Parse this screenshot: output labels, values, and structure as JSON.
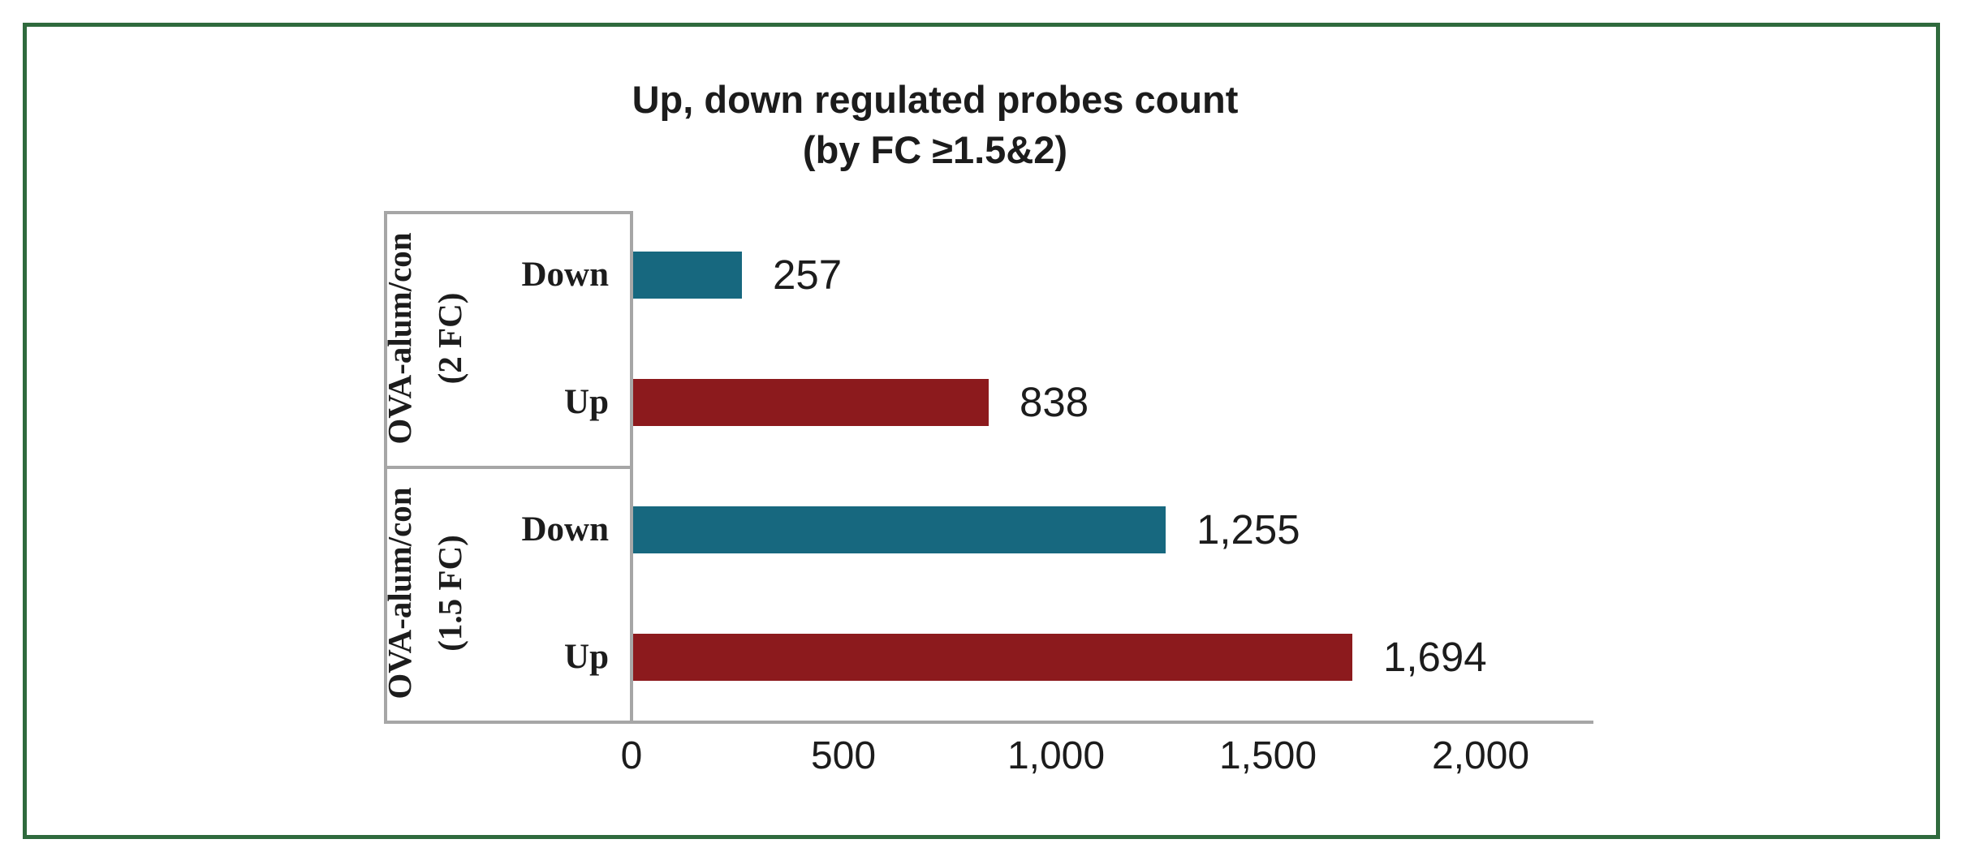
{
  "frame": {
    "border_color": "#2f6a3d",
    "background": "#ffffff"
  },
  "chart_data": {
    "type": "bar",
    "orientation": "horizontal",
    "title_lines": [
      "Up, down regulated probes count",
      "(by FC ≥1.5&2)"
    ],
    "title": "Up, down regulated probes count (by FC ≥1.5&2)",
    "groups": [
      {
        "group_label_lines": [
          "OVA-alum/con",
          "(2 FC)"
        ],
        "bars": [
          {
            "category": "Down",
            "value": 257,
            "value_label": "257",
            "series": "down"
          },
          {
            "category": "Up",
            "value": 838,
            "value_label": "838",
            "series": "up"
          }
        ]
      },
      {
        "group_label_lines": [
          "OVA-alum/con",
          "(1.5 FC)"
        ],
        "bars": [
          {
            "category": "Down",
            "value": 1255,
            "value_label": "1,255",
            "series": "down"
          },
          {
            "category": "Up",
            "value": 1694,
            "value_label": "1,694",
            "series": "up"
          }
        ]
      }
    ],
    "x_axis": {
      "ticks": [
        {
          "value": 0,
          "label": "0"
        },
        {
          "value": 500,
          "label": "500"
        },
        {
          "value": 1000,
          "label": "1,000"
        },
        {
          "value": 1500,
          "label": "1,500"
        },
        {
          "value": 2000,
          "label": "2,000"
        }
      ],
      "xlim": [
        0,
        2266
      ]
    },
    "colors": {
      "down": "#17687f",
      "up": "#8c1a1d",
      "axis_line": "#a6a6a6",
      "text": "#1c1c1c"
    },
    "legend": "none",
    "gridlines": "off"
  }
}
